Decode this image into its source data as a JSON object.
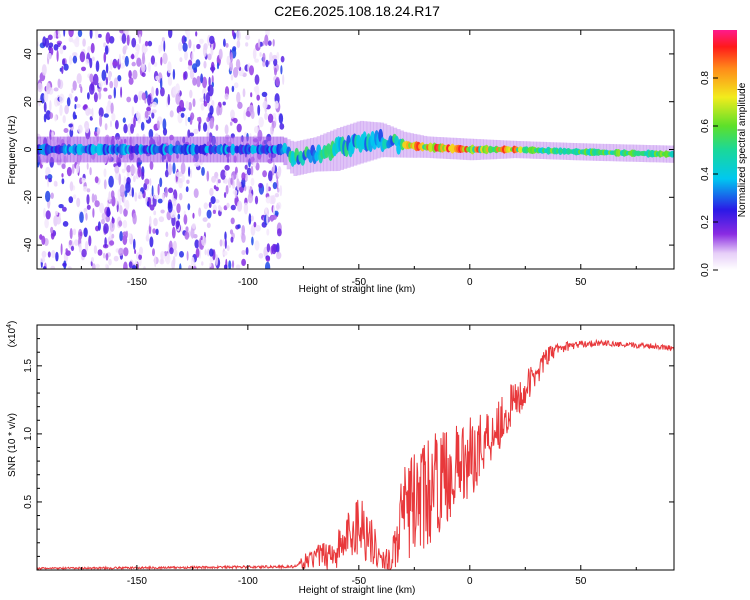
{
  "title": "C2E6.2025.108.18.24.R17",
  "chart_data": [
    {
      "id": "spectrogram",
      "type": "heatmap",
      "xlabel": "Height of straight line (km)",
      "ylabel": "Frequency (Hz)",
      "xlim": [
        -195,
        92
      ],
      "ylim": [
        -50,
        50
      ],
      "xticks": [
        -150,
        -100,
        -50,
        0,
        50
      ],
      "xtick_labels": [
        "-150",
        "-100",
        "-50",
        "0",
        "50"
      ],
      "yticks": [
        -40,
        -20,
        0,
        20,
        40
      ],
      "ytick_labels": [
        "-40",
        "-20",
        "0",
        "20",
        "40"
      ],
      "signal_band": {
        "x": [
          -195,
          -85,
          -80,
          -70,
          -60,
          -50,
          -40,
          -30,
          -20,
          0,
          20,
          50,
          92
        ],
        "center_freq": [
          0,
          0,
          -4,
          -2,
          0,
          3,
          4,
          2,
          1,
          0,
          0,
          -1,
          -2
        ],
        "half_width": [
          3,
          3,
          4,
          4,
          5,
          5,
          4,
          3,
          2.5,
          2.5,
          2,
          2,
          2
        ]
      },
      "noise_region_xmax": -84,
      "colorbar": {
        "label": "Normalized spectral amplitude",
        "range": [
          0,
          1
        ],
        "ticks": [
          0.0,
          0.2,
          0.4,
          0.6,
          0.8
        ],
        "tick_labels": [
          "0.0",
          "0.2",
          "0.4",
          "0.6",
          "0.8"
        ]
      }
    },
    {
      "id": "snr",
      "type": "line",
      "xlabel": "Height of straight line (km)",
      "ylabel": "SNR (10 * v/v)",
      "y_scale_label": "(x10",
      "y_scale_exp": "4",
      "xlim": [
        -195,
        92
      ],
      "ylim": [
        0,
        18000
      ],
      "xticks": [
        -150,
        -100,
        -50,
        0,
        50
      ],
      "xtick_labels": [
        "-150",
        "-100",
        "-50",
        "0",
        "50"
      ],
      "yticks": [
        5000,
        10000,
        15000
      ],
      "ytick_labels": [
        "0.5",
        "1.0",
        "1.5"
      ],
      "color": "#e8383b",
      "envelope": {
        "x": [
          -195,
          -130,
          -78,
          -75,
          -70,
          -60,
          -55,
          -50,
          -45,
          -40,
          -35,
          -30,
          -25,
          -20,
          -15,
          -10,
          -5,
          0,
          5,
          10,
          15,
          20,
          25,
          30,
          35,
          40,
          50,
          60,
          70,
          80,
          92
        ],
        "mean": [
          120,
          180,
          250,
          600,
          900,
          1400,
          2400,
          3500,
          2500,
          700,
          900,
          4000,
          5000,
          5500,
          6300,
          7000,
          7600,
          8200,
          9200,
          10200,
          11200,
          12300,
          13200,
          14500,
          15700,
          16300,
          16600,
          16700,
          16500,
          16500,
          16300
        ],
        "amplitude": [
          60,
          80,
          100,
          500,
          800,
          1400,
          2000,
          2600,
          2000,
          600,
          1200,
          3500,
          4000,
          4000,
          3800,
          3500,
          3200,
          3000,
          2600,
          2300,
          2000,
          1600,
          1300,
          1000,
          700,
          400,
          250,
          200,
          200,
          200,
          200
        ]
      }
    }
  ]
}
